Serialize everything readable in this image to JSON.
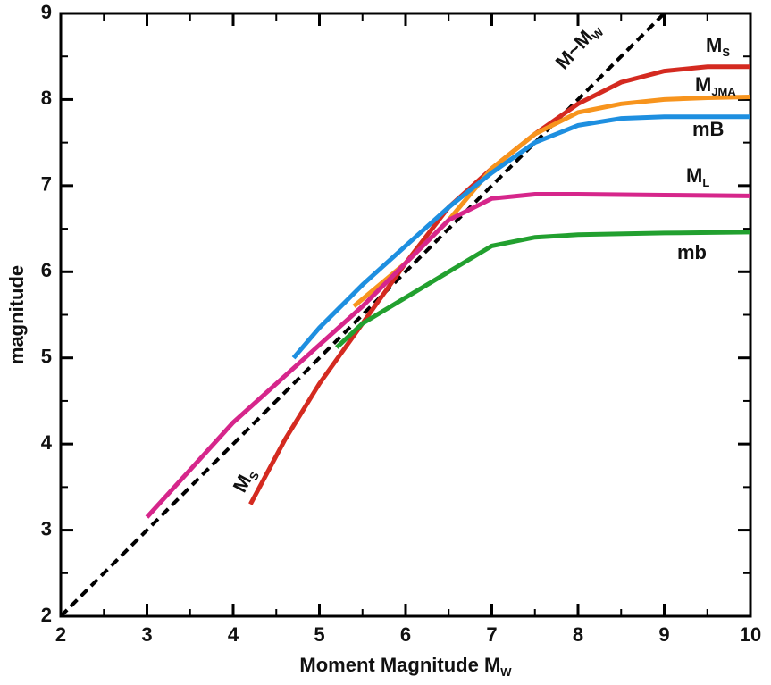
{
  "chart_data": {
    "type": "line",
    "xlabel": {
      "text": "Moment Magnitude M",
      "sub": "W"
    },
    "ylabel": "magnitude",
    "xlim": [
      2,
      10
    ],
    "ylim": [
      2,
      9
    ],
    "xticks": [
      2,
      3,
      4,
      5,
      6,
      7,
      8,
      9,
      10
    ],
    "yticks": [
      2,
      3,
      4,
      5,
      6,
      7,
      8,
      9
    ],
    "xminorticks": [
      2.5,
      3.5,
      4.5,
      5.5,
      6.5,
      7.5,
      8.5,
      9.5
    ],
    "yminorticks": [
      2.5,
      3.5,
      4.5,
      5.5,
      6.5,
      7.5,
      8.5
    ],
    "series": [
      {
        "name": "M~M",
        "name_sub": "W",
        "color": "#000000",
        "dashed": true,
        "x": [
          2,
          9
        ],
        "values": [
          2,
          9
        ]
      },
      {
        "name": "M",
        "name_sub": "S",
        "color": "#d42a20",
        "x": [
          4.2,
          4.6,
          5,
          5.5,
          6,
          6.5,
          7,
          7.5,
          8,
          8.5,
          9,
          9.5,
          10
        ],
        "values": [
          3.3,
          4.05,
          4.7,
          5.4,
          6.1,
          6.75,
          7.2,
          7.6,
          7.95,
          8.2,
          8.33,
          8.38,
          8.38
        ]
      },
      {
        "name": "M",
        "name_sub": "JMA",
        "color": "#f7941d",
        "x": [
          5.4,
          6,
          6.5,
          7,
          7.5,
          8,
          8.5,
          9,
          9.5,
          10
        ],
        "values": [
          5.6,
          6.1,
          6.6,
          7.2,
          7.6,
          7.85,
          7.95,
          8.0,
          8.02,
          8.03
        ]
      },
      {
        "name": "mB",
        "color": "#1e8fe0",
        "x": [
          4.7,
          5,
          5.5,
          6,
          6.5,
          7,
          7.5,
          8,
          8.5,
          9,
          10
        ],
        "values": [
          5.0,
          5.35,
          5.85,
          6.3,
          6.75,
          7.15,
          7.5,
          7.7,
          7.78,
          7.8,
          7.8
        ]
      },
      {
        "name": "M",
        "name_sub": "L",
        "color": "#d6268b",
        "x": [
          3,
          3.5,
          4,
          4.5,
          5,
          5.5,
          6,
          6.5,
          7,
          7.5,
          8,
          9,
          10
        ],
        "values": [
          3.15,
          3.7,
          4.25,
          4.7,
          5.15,
          5.6,
          6.1,
          6.6,
          6.85,
          6.9,
          6.9,
          6.89,
          6.88
        ]
      },
      {
        "name": "mb",
        "color": "#22a02f",
        "x": [
          5.2,
          5.5,
          6,
          6.5,
          7,
          7.5,
          8,
          9,
          10
        ],
        "values": [
          5.12,
          5.4,
          5.7,
          6.0,
          6.3,
          6.4,
          6.43,
          6.45,
          6.46
        ]
      }
    ],
    "annotations": [
      {
        "text": "M",
        "sub": "S"
      }
    ]
  }
}
